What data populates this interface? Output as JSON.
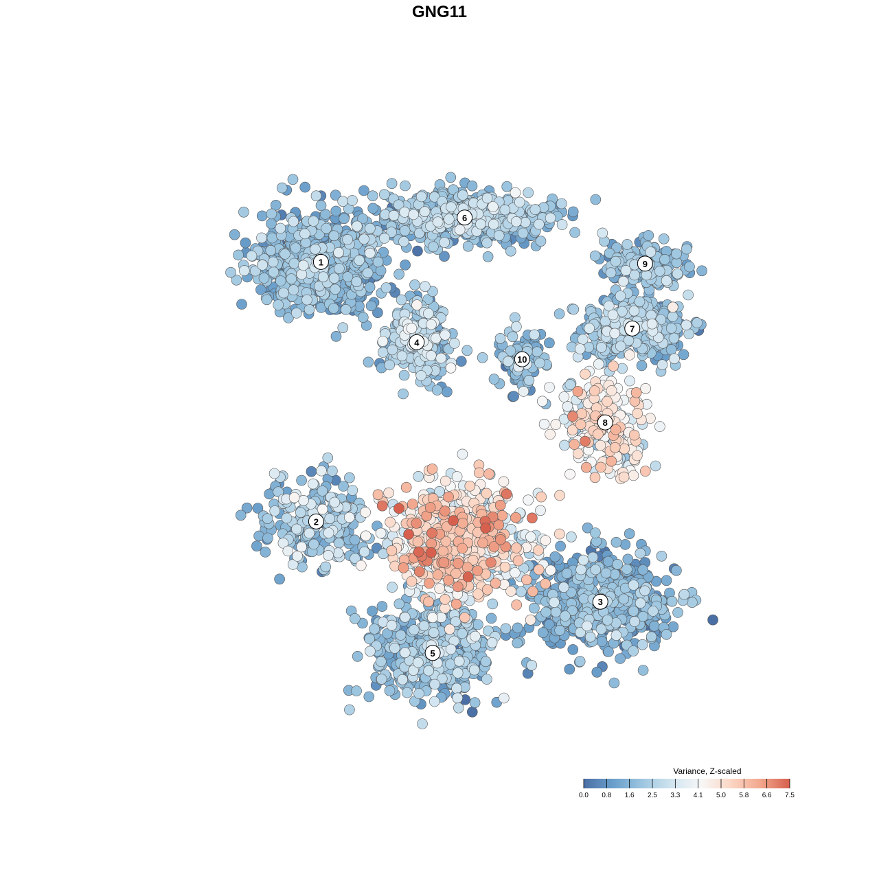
{
  "chart_data": {
    "type": "scatter",
    "title": "GNG11",
    "xlabel": "",
    "ylabel": "",
    "grid": false,
    "legend_position": "bottom-right",
    "colorbar": {
      "title": "Variance, Z-scaled",
      "ticks": [
        "0.0",
        "0.8",
        "1.6",
        "2.5",
        "3.3",
        "4.1",
        "5.0",
        "5.8",
        "6.6",
        "7.5"
      ],
      "min": 0.0,
      "max": 7.5,
      "colors": [
        "#4a6fa5",
        "#6a9fcb",
        "#9dc6e0",
        "#d2e5f0",
        "#f7f7f7",
        "#fbd6c4",
        "#f2a78d",
        "#d6604d"
      ]
    },
    "clusters": [
      {
        "label": "1",
        "x": -8.5,
        "y": 8.9,
        "spread_x": 4.0,
        "spread_y": 3.0,
        "mean": 1.6,
        "sd": 0.7,
        "n": 700
      },
      {
        "label": "6",
        "x": 0.5,
        "y": 11.5,
        "spread_x": 5.2,
        "spread_y": 1.5,
        "mean": 2.0,
        "sd": 0.7,
        "n": 650
      },
      {
        "label": "4",
        "x": -2.5,
        "y": 4.2,
        "spread_x": 2.0,
        "spread_y": 2.3,
        "mean": 2.2,
        "sd": 0.8,
        "n": 300
      },
      {
        "label": "10",
        "x": 4.1,
        "y": 3.2,
        "spread_x": 1.5,
        "spread_y": 2.0,
        "mean": 1.8,
        "sd": 0.8,
        "n": 90
      },
      {
        "label": "9",
        "x": 11.8,
        "y": 8.8,
        "spread_x": 2.8,
        "spread_y": 1.2,
        "mean": 1.7,
        "sd": 0.7,
        "n": 160
      },
      {
        "label": "7",
        "x": 11.0,
        "y": 5.0,
        "spread_x": 3.5,
        "spread_y": 1.8,
        "mean": 2.0,
        "sd": 0.7,
        "n": 320
      },
      {
        "label": "8",
        "x": 9.3,
        "y": -0.5,
        "spread_x": 2.8,
        "spread_y": 3.0,
        "mean": 4.3,
        "sd": 1.0,
        "n": 230
      },
      {
        "label": "2",
        "x": -8.8,
        "y": -6.3,
        "spread_x": 3.5,
        "spread_y": 2.5,
        "mean": 2.2,
        "sd": 0.8,
        "n": 260
      },
      {
        "label": "3",
        "x": 9.0,
        "y": -11.0,
        "spread_x": 4.5,
        "spread_y": 2.8,
        "mean": 1.5,
        "sd": 0.7,
        "n": 500
      },
      {
        "label": "5",
        "x": -1.5,
        "y": -14.0,
        "spread_x": 4.0,
        "spread_y": 2.8,
        "mean": 1.8,
        "sd": 0.8,
        "n": 420
      },
      {
        "label": "",
        "x": 0.0,
        "y": -7.5,
        "spread_x": 4.5,
        "spread_y": 3.5,
        "mean": 4.4,
        "sd": 1.3,
        "n": 600
      }
    ],
    "xlim": [
      -20,
      20
    ],
    "ylim": [
      -20,
      17
    ]
  }
}
